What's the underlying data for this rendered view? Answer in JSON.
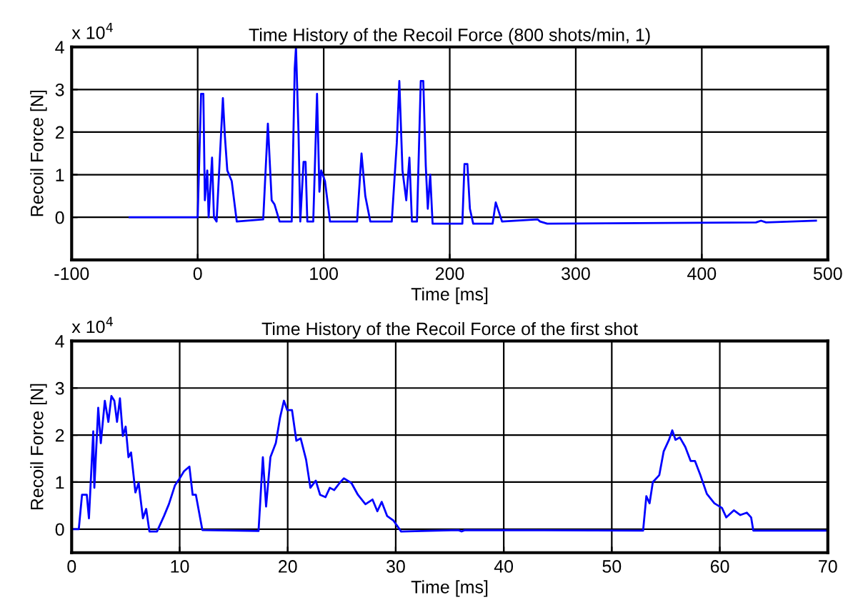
{
  "chart_data": [
    {
      "type": "line",
      "title": "Time History of the Recoil Force (800 shots/min, 1)",
      "xlabel": "Time [ms]",
      "ylabel": "Recoil Force [N]",
      "annotations": [
        "x 10$^{4}$"
      ],
      "xlim": [
        -100,
        500
      ],
      "xticks": [
        -100,
        0,
        100,
        200,
        300,
        400,
        500
      ],
      "ylim": [
        -1,
        4
      ],
      "yticks": [
        0,
        1,
        2,
        3,
        4
      ],
      "grid": true,
      "marker": "none",
      "line_style": "solid",
      "series": [
        {
          "color": "#0000ff",
          "x": [
            -54,
            0,
            2.7,
            4.5,
            5.7,
            7.6,
            8.7,
            11.4,
            12.9,
            15,
            20,
            21.6,
            23.5,
            27,
            31,
            52,
            55.7,
            58.7,
            61,
            65,
            74.6,
            77,
            78,
            80,
            81.4,
            84,
            85.6,
            87,
            91.7,
            94.7,
            96.6,
            98,
            101,
            105,
            126.5,
            130,
            133,
            137,
            154,
            158,
            160,
            162.5,
            165.5,
            168,
            170,
            174,
            177,
            179,
            181,
            182.6,
            184.5,
            186.4,
            210,
            211.7,
            214,
            216,
            218.6,
            234,
            236.5,
            241.5,
            269.8,
            271.7,
            277.4,
            443,
            447,
            451,
            490.6
          ],
          "values": [
            0,
            0,
            2.9,
            2.9,
            0.4,
            1.1,
            0,
            1.4,
            0,
            -0.1,
            2.8,
            1.9,
            1.1,
            0.85,
            -0.1,
            -0.05,
            2.2,
            0.4,
            0.3,
            -0.1,
            -0.1,
            3.5,
            4.0,
            2.0,
            -0.1,
            1.3,
            1.3,
            -0.1,
            -0.1,
            2.9,
            0.6,
            1.1,
            0.85,
            -0.1,
            -0.1,
            1.5,
            0.5,
            -0.1,
            -0.1,
            1.75,
            3.2,
            1.1,
            0.4,
            1.4,
            -0.1,
            -0.1,
            3.2,
            3.2,
            1.2,
            0.2,
            1.0,
            -0.15,
            -0.15,
            1.25,
            1.25,
            0.2,
            -0.15,
            -0.15,
            0.35,
            -0.1,
            -0.05,
            -0.1,
            -0.15,
            -0.12,
            -0.08,
            -0.12,
            -0.08
          ]
        }
      ]
    },
    {
      "type": "line",
      "title": "Time History of the Recoil Force of the first shot",
      "xlabel": "Time [ms]",
      "ylabel": "Recoil Force [N]",
      "annotations": [
        "x 10$^{4}$"
      ],
      "xlim": [
        0,
        70
      ],
      "xticks": [
        0,
        10,
        20,
        30,
        40,
        50,
        60,
        70
      ],
      "ylim": [
        -0.5,
        4
      ],
      "yticks": [
        0,
        1,
        2,
        3,
        4
      ],
      "grid": true,
      "marker": "none",
      "line_style": "solid",
      "series": [
        {
          "color": "#0000ff",
          "x": [
            0,
            0.66,
            0.96,
            1.4,
            1.6,
            2.0,
            2.1,
            2.46,
            2.7,
            3.07,
            3.4,
            3.68,
            3.95,
            4.2,
            4.47,
            4.74,
            5.0,
            5.26,
            5.5,
            5.9,
            6.2,
            6.6,
            6.9,
            7.2,
            7.9,
            8.55,
            9.0,
            9.56,
            10,
            10.4,
            10.9,
            11.2,
            11.5,
            12.1,
            17.3,
            17.7,
            18.0,
            18.4,
            18.9,
            19.3,
            19.65,
            19.96,
            20.4,
            20.8,
            21.2,
            21.7,
            22.1,
            22.6,
            23.0,
            23.5,
            23.9,
            24.3,
            24.8,
            25.2,
            25.9,
            26.5,
            27.2,
            27.85,
            28.3,
            28.7,
            29.2,
            29.8,
            30.5,
            35.8,
            36.1,
            36.4,
            52.9,
            53.2,
            53.5,
            53.8,
            54.4,
            54.8,
            55.3,
            55.6,
            55.9,
            56.3,
            56.8,
            57.3,
            57.7,
            58.2,
            58.8,
            59.5,
            60.2,
            60.6,
            61.3,
            61.9,
            62.5,
            62.9,
            63.1,
            70
          ],
          "values": [
            0,
            0,
            0.73,
            0.73,
            0.23,
            2.08,
            0.88,
            2.58,
            1.83,
            2.73,
            2.28,
            2.83,
            2.73,
            2.28,
            2.78,
            1.98,
            2.18,
            1.53,
            1.63,
            0.78,
            0.98,
            0.23,
            0.43,
            -0.05,
            -0.05,
            0.28,
            0.53,
            0.93,
            1.08,
            1.23,
            1.33,
            0.73,
            0.73,
            -0.02,
            -0.04,
            1.53,
            0.48,
            1.53,
            1.83,
            2.38,
            2.73,
            2.53,
            2.53,
            1.88,
            1.93,
            1.48,
            0.88,
            1.03,
            0.73,
            0.68,
            0.88,
            0.83,
            0.98,
            1.08,
            0.98,
            0.73,
            0.53,
            0.63,
            0.38,
            0.58,
            0.28,
            0.18,
            -0.05,
            -0.02,
            -0.05,
            -0.02,
            -0.03,
            0.7,
            0.55,
            1.0,
            1.15,
            1.65,
            1.9,
            2.1,
            1.9,
            1.95,
            1.75,
            1.45,
            1.45,
            1.15,
            0.75,
            0.55,
            0.45,
            0.25,
            0.4,
            0.3,
            0.35,
            0.25,
            -0.03,
            -0.03
          ]
        }
      ]
    }
  ]
}
